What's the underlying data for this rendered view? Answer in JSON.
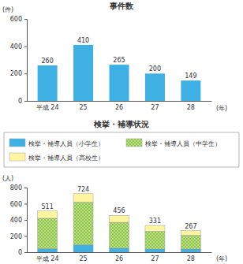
{
  "chart_data": [
    {
      "type": "bar",
      "title": "事件数",
      "y_label": "(件)",
      "x_label": "(年)",
      "categories": [
        "平成 24",
        "25",
        "26",
        "27",
        "28"
      ],
      "values": [
        260,
        410,
        265,
        200,
        149
      ],
      "color": "#3fb0e3",
      "ylim": [
        0,
        600
      ],
      "yticks": [
        0,
        200,
        400,
        600
      ],
      "grid": false,
      "data_labels": true
    },
    {
      "type": "bar",
      "title": "検挙・補導状況",
      "y_label": "(人)",
      "x_label": "(年)",
      "categories": [
        "平成 24",
        "25",
        "26",
        "27",
        "28"
      ],
      "stacked": true,
      "legend": "top",
      "series": [
        {
          "name": "検挙・補導人員（小学生）",
          "color": "#3fb0e3",
          "values": [
            45,
            90,
            50,
            40,
            40
          ]
        },
        {
          "name": "検挙・補導人員（中学生）",
          "color": "#8cc63f",
          "marker": "dots",
          "values": [
            375,
            530,
            320,
            220,
            170
          ]
        },
        {
          "name": "検挙・補導人員（高校生）",
          "color": "#fff5a0",
          "values": [
            91,
            104,
            86,
            71,
            57
          ]
        }
      ],
      "totals": [
        511,
        724,
        456,
        331,
        267
      ],
      "ylim": [
        0,
        800
      ],
      "yticks": [
        0,
        200,
        400,
        600,
        800
      ],
      "grid": false
    }
  ]
}
